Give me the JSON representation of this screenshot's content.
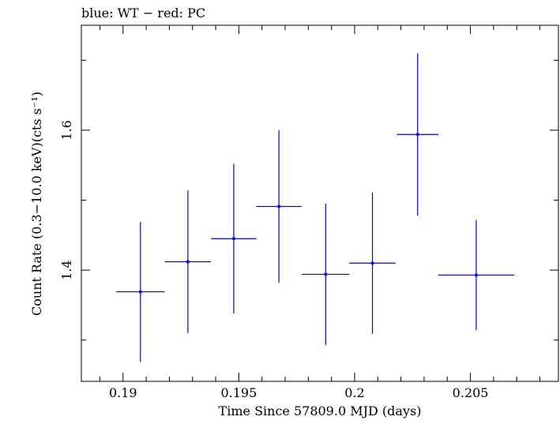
{
  "chart_data": {
    "type": "scatter",
    "title": "blue: WT − red: PC",
    "xlabel": "Time Since 57809.0 MJD (days)",
    "ylabel": "Count Rate (0.3−10.0 keV)(cts s⁻¹)",
    "xlim": [
      0.1882,
      0.2088
    ],
    "ylim": [
      1.241,
      1.75
    ],
    "x_ticks": [
      {
        "value": 0.19,
        "label": "0.19"
      },
      {
        "value": 0.195,
        "label": "0.195"
      },
      {
        "value": 0.2,
        "label": "0.2"
      },
      {
        "value": 0.205,
        "label": "0.205"
      }
    ],
    "y_ticks": [
      {
        "value": 1.4,
        "label": "1.4"
      },
      {
        "value": 1.6,
        "label": "1.6"
      }
    ],
    "series": [
      {
        "color": "#0000ff",
        "points": [
          {
            "x": 0.19075,
            "y": 1.369,
            "xerr": 0.00105,
            "yerr": 0.1
          },
          {
            "x": 0.1928,
            "y": 1.412,
            "xerr": 0.001,
            "yerr": 0.102
          },
          {
            "x": 0.19478,
            "y": 1.445,
            "xerr": 0.00098,
            "yerr": 0.107
          },
          {
            "x": 0.19673,
            "y": 1.491,
            "xerr": 0.00098,
            "yerr": 0.109
          },
          {
            "x": 0.19875,
            "y": 1.394,
            "xerr": 0.00103,
            "yerr": 0.101
          },
          {
            "x": 0.20077,
            "y": 1.41,
            "xerr": 0.001,
            "yerr": 0.101
          },
          {
            "x": 0.20272,
            "y": 1.594,
            "xerr": 0.0009,
            "yerr": 0.116
          },
          {
            "x": 0.20525,
            "y": 1.393,
            "xerr": 0.00165,
            "yerr": 0.079
          }
        ]
      }
    ]
  }
}
